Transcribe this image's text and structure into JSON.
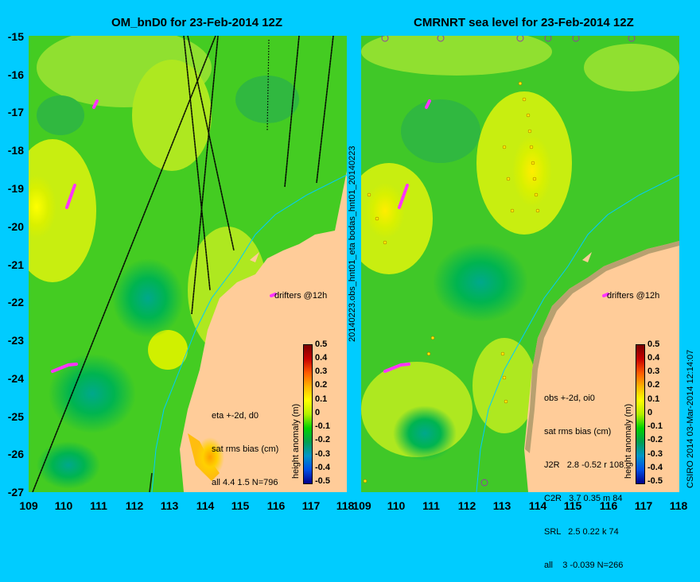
{
  "left_title": "OM_bnD0 for 23-Feb-2014 12Z",
  "right_title": "CMRNRT sea level  for 23-Feb-2014 12Z",
  "y_ticks": [
    "-15",
    "-16",
    "-17",
    "-18",
    "-19",
    "-20",
    "-21",
    "-22",
    "-23",
    "-24",
    "-25",
    "-26",
    "-27"
  ],
  "x_ticks": [
    "109",
    "110",
    "111",
    "112",
    "113",
    "114",
    "115",
    "116",
    "117",
    "118"
  ],
  "right_x_ticks": [
    "109",
    "110",
    "111",
    "112",
    "113",
    "114",
    "115",
    "116",
    "117",
    "118"
  ],
  "center_label": "20140223.obs_hnt01_eta    bodas_hnt01_20140223",
  "drifters_label_left": "drifters @12h",
  "drifters_label_right": "drifters @12h",
  "left_legend": {
    "line1": "eta +-2d, d0",
    "line2": "sat rms bias (cm)",
    "line3": "all 4.4 1.5 N=796"
  },
  "right_legend": {
    "line1": "obs +-2d, oi0",
    "line2": "sat rms bias (cm)",
    "rows": [
      "J2R   2.8 -0.52 r 108",
      "C2R   3.7 0.35 m 84",
      "SRL   2.5 0.22 k 74",
      "all    3 -0.039 N=266"
    ]
  },
  "colorbar": {
    "label": "height anomaly (m)",
    "ticks": [
      "0.5",
      "0.4",
      "0.3",
      "0.2",
      "0.1",
      "0",
      "-0.1",
      "-0.2",
      "-0.3",
      "-0.4",
      "-0.5"
    ],
    "colors": [
      "#7a0000",
      "#c80000",
      "#ff5a00",
      "#ffb400",
      "#ffff00",
      "#b4f000",
      "#00d200",
      "#00a050",
      "#0096c8",
      "#0050e6",
      "#00008c"
    ]
  },
  "copyright": "CSIRO 2014  03-Mar-2014 12:14:07",
  "colors": {
    "background": "#00ccff",
    "land": "#ffcc99",
    "drifter": "#ff33ff",
    "track": "#000000"
  }
}
